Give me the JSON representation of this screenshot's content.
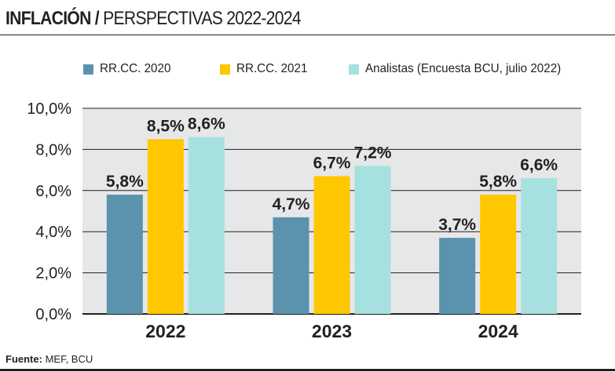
{
  "header": {
    "title_bold": "INFLACIÓN /",
    "title_regular": "PERSPECTIVAS 2022-2024"
  },
  "footer": {
    "source_label": "Fuente:",
    "source_value": "MEF, BCU"
  },
  "chart_data": {
    "type": "bar",
    "title": "INFLACIÓN / PERSPECTIVAS 2022-2024",
    "xlabel": "",
    "ylabel": "",
    "categories": [
      "2022",
      "2023",
      "2024"
    ],
    "series": [
      {
        "name": "RR.CC. 2020",
        "color": "#5b93ae",
        "values": [
          5.8,
          4.7,
          3.7
        ],
        "labels": [
          "5,8%",
          "4,7%",
          "3,7%"
        ]
      },
      {
        "name": "RR.CC. 2021",
        "color": "#ffc700",
        "values": [
          8.5,
          6.7,
          5.8
        ],
        "labels": [
          "8,5%",
          "6,7%",
          "5,8%"
        ]
      },
      {
        "name": "Analistas (Encuesta BCU, julio 2022)",
        "color": "#a6e1df",
        "values": [
          8.6,
          7.2,
          6.6
        ],
        "labels": [
          "8,6%",
          "7,2%",
          "6,6%"
        ]
      }
    ],
    "ylim": [
      0,
      10
    ],
    "yticks": [
      0,
      2,
      4,
      6,
      8,
      10
    ],
    "ytick_labels": [
      "0,0%",
      "2,0%",
      "4,0%",
      "6,0%",
      "8,0%",
      "10,0%"
    ],
    "grid": true,
    "legend_position": "top"
  }
}
